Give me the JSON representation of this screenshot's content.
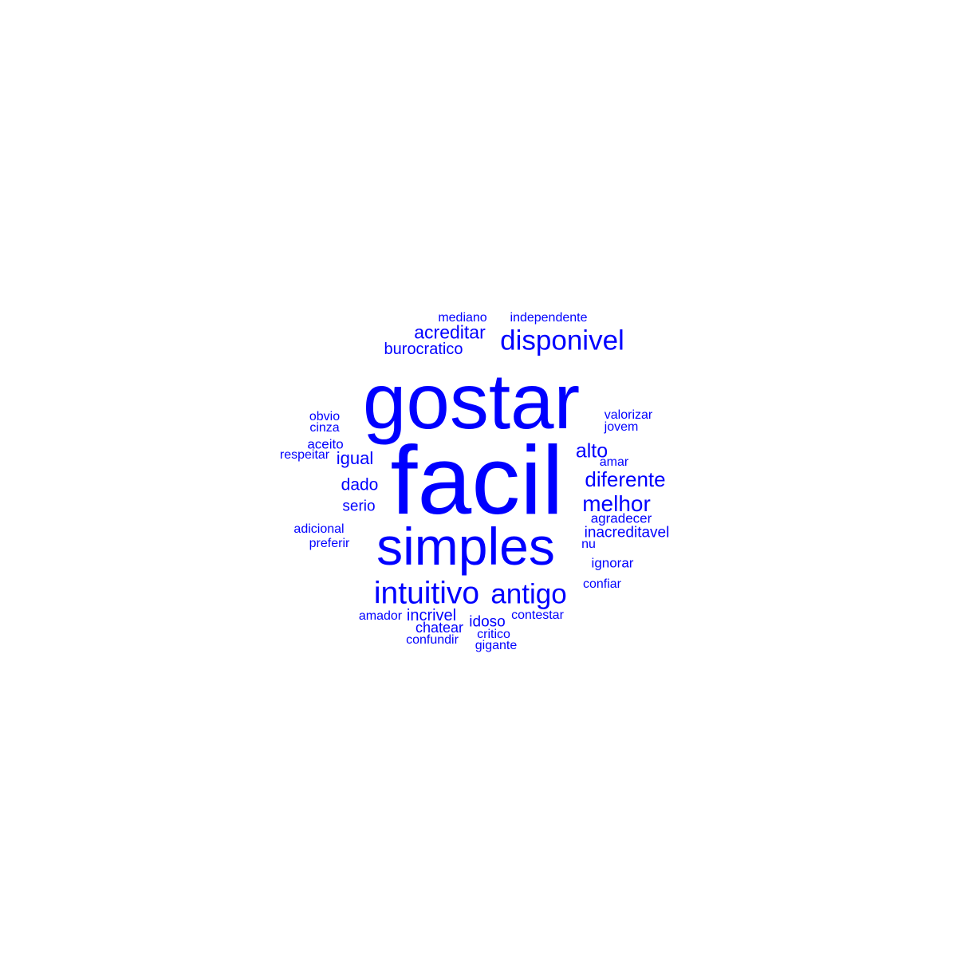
{
  "word_color": "#0000ff",
  "background_color": "#ffffff",
  "words": {
    "facil": "facil",
    "gostar": "gostar",
    "simples": "simples",
    "intuitivo": "intuitivo",
    "antigo": "antigo",
    "disponivel": "disponivel",
    "melhor": "melhor",
    "diferente": "diferente",
    "acreditar": "acreditar",
    "alto": "alto",
    "burocratico": "burocratico",
    "igual": "igual",
    "dado": "dado",
    "serio": "serio",
    "incrivel": "incrivel",
    "idoso": "idoso",
    "chatear": "chatear",
    "inacreditavel": "inacreditavel",
    "agradecer": "agradecer",
    "ignorar": "ignorar",
    "contestar": "contestar",
    "confiar": "confiar",
    "mediano": "mediano",
    "independente": "independente",
    "valorizar": "valorizar",
    "jovem": "jovem",
    "obvio": "obvio",
    "cinza": "cinza",
    "aceito": "aceito",
    "respeitar": "respeitar",
    "amar": "amar",
    "adicional": "adicional",
    "preferir": "preferir",
    "nu": "nu",
    "amador": "amador",
    "confundir": "confundir",
    "critico": "critico",
    "gigante": "gigante"
  }
}
